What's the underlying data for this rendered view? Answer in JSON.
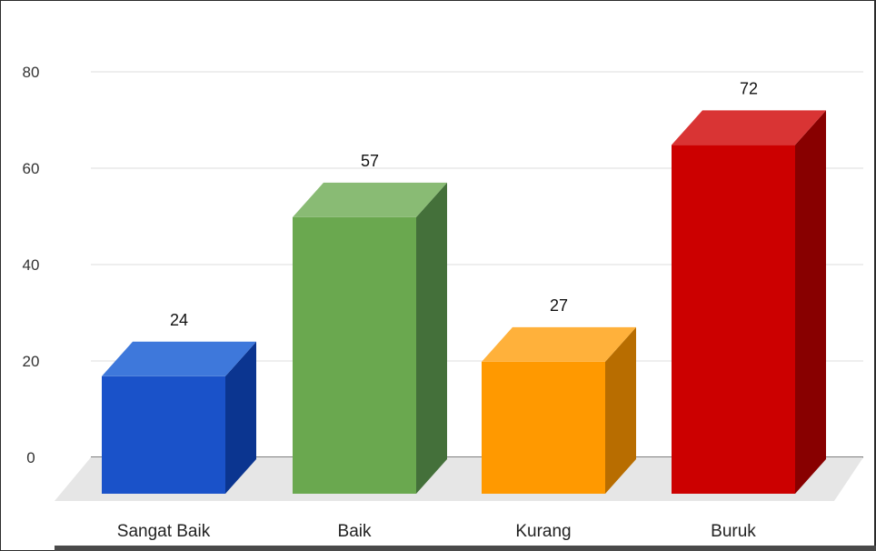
{
  "chart_data": {
    "type": "bar",
    "style": "3d",
    "categories": [
      "Sangat Baik",
      "Baik",
      "Kurang",
      "Buruk"
    ],
    "values": [
      24,
      57,
      27,
      72
    ],
    "data_labels": [
      "24",
      "57",
      "27",
      "72"
    ],
    "colors": [
      "#1a52c9",
      "#6aa84f",
      "#ff9900",
      "#cc0000"
    ],
    "side_colors": [
      "#0b3590",
      "#44703a",
      "#b86d00",
      "#880000"
    ],
    "top_colors": [
      "#3e78db",
      "#89bb74",
      "#ffb13b",
      "#d93434"
    ],
    "title": "",
    "xlabel": "",
    "ylabel": "",
    "yticks": [
      0,
      20,
      40,
      60,
      80
    ],
    "ylim": [
      0,
      85
    ],
    "grid": true,
    "legend": "none"
  }
}
